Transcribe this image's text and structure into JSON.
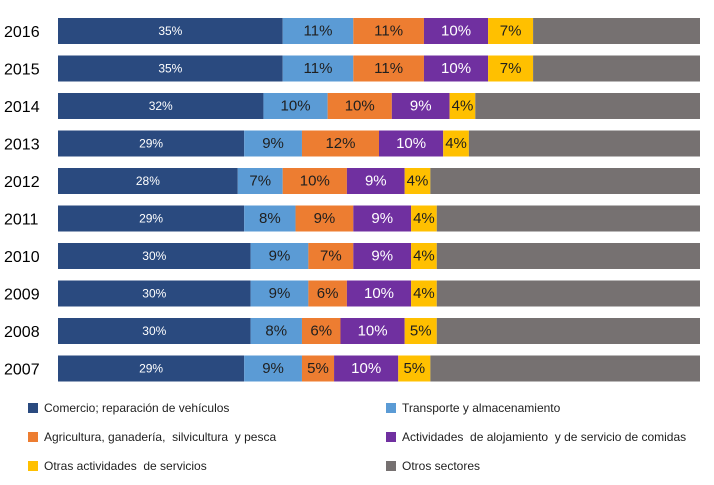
{
  "chart_data": {
    "type": "bar",
    "orientation": "horizontal",
    "stacked": true,
    "normalized": true,
    "categories": [
      "2016",
      "2015",
      "2014",
      "2013",
      "2012",
      "2011",
      "2010",
      "2009",
      "2008",
      "2007"
    ],
    "series": [
      {
        "name": "Comercio; reparación de vehículos",
        "color": "#2a4a7f",
        "label_color": "#ffffff",
        "values": [
          35,
          35,
          32,
          29,
          28,
          29,
          30,
          30,
          30,
          29
        ],
        "labels": [
          "35%",
          "35%",
          "32%",
          "29%",
          "28%",
          "29%",
          "30%",
          "30%",
          "30%",
          "29%"
        ]
      },
      {
        "name": "Transporte y almacenamiento",
        "color": "#5b9bd5",
        "label_color": "#1f1f1f",
        "values": [
          11,
          11,
          10,
          9,
          7,
          8,
          9,
          9,
          8,
          9
        ],
        "labels": [
          "11%",
          "11%",
          "10%",
          "9%",
          "7%",
          "8%",
          "9%",
          "9%",
          "8%",
          "9%"
        ]
      },
      {
        "name": "Agricultura, ganadería,  silvicultura  y pesca",
        "color": "#ed7d31",
        "label_color": "#1f1f1f",
        "values": [
          11,
          11,
          10,
          12,
          10,
          9,
          7,
          6,
          6,
          5
        ],
        "labels": [
          "11%",
          "11%",
          "10%",
          "12%",
          "10%",
          "9%",
          "7%",
          "6%",
          "6%",
          "5%"
        ]
      },
      {
        "name": "Actividades  de alojamiento  y de servicio de comidas",
        "color": "#7030a0",
        "label_color": "#ffffff",
        "values": [
          10,
          10,
          9,
          10,
          9,
          9,
          9,
          10,
          10,
          10
        ],
        "labels": [
          "10%",
          "10%",
          "9%",
          "10%",
          "9%",
          "9%",
          "9%",
          "10%",
          "10%",
          "10%"
        ]
      },
      {
        "name": "Otras actividades  de servicios",
        "color": "#ffc000",
        "label_color": "#1f1f1f",
        "values": [
          7,
          7,
          4,
          4,
          4,
          4,
          4,
          4,
          5,
          5
        ],
        "labels": [
          "7%",
          "7%",
          "4%",
          "4%",
          "4%",
          "4%",
          "4%",
          "4%",
          "5%",
          "5%"
        ]
      },
      {
        "name": "Otros sectores",
        "color": "#767171",
        "label_color": "#ffffff",
        "values": [
          26,
          26,
          35,
          36,
          42,
          41,
          41,
          41,
          41,
          42
        ],
        "labels": [
          "",
          "",
          "",
          "",
          "",
          "",
          "",
          "",
          "",
          ""
        ]
      }
    ],
    "xlim": [
      0,
      100
    ],
    "title": "",
    "xlabel": "",
    "ylabel": "",
    "grid": false,
    "legend_position": "bottom"
  }
}
